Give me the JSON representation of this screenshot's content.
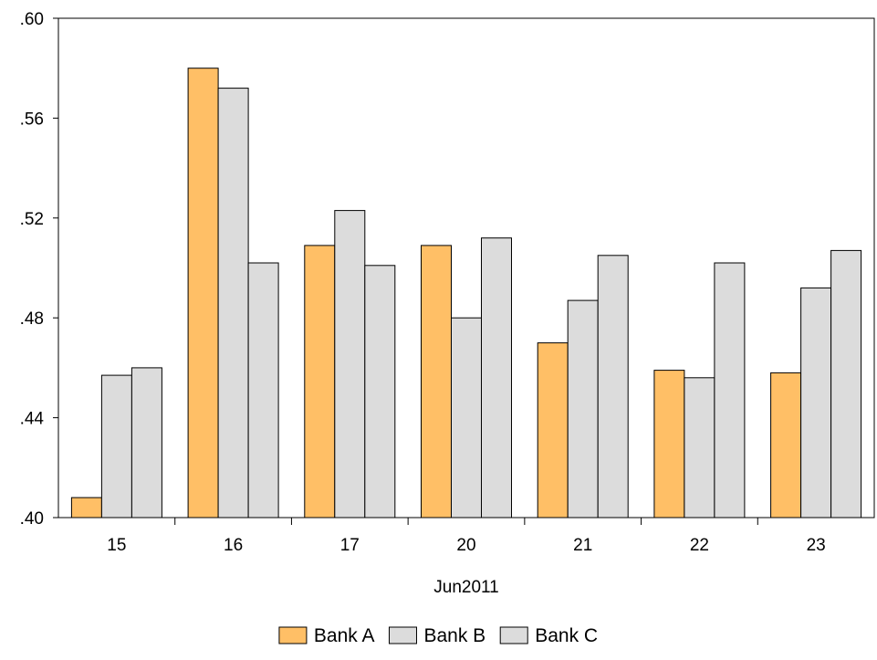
{
  "chart_data": {
    "type": "bar",
    "title": "",
    "xlabel": "Jun2011",
    "ylabel": "",
    "categories": [
      "15",
      "16",
      "17",
      "20",
      "21",
      "22",
      "23"
    ],
    "series": [
      {
        "name": "Bank A",
        "color": "#FFBF66",
        "values": [
          0.408,
          0.58,
          0.509,
          0.509,
          0.47,
          0.459,
          0.458
        ]
      },
      {
        "name": "Bank B",
        "color": "#DCDCDC",
        "values": [
          0.457,
          0.572,
          0.523,
          0.48,
          0.487,
          0.456,
          0.492
        ]
      },
      {
        "name": "Bank C",
        "color": "#DCDCDC",
        "values": [
          0.46,
          0.502,
          0.501,
          0.512,
          0.505,
          0.502,
          0.507
        ]
      }
    ],
    "ylim": [
      0.4,
      0.6
    ],
    "yticks": [
      0.4,
      0.44,
      0.48,
      0.52,
      0.56,
      0.6
    ],
    "ytick_labels": [
      ".40",
      ".44",
      ".48",
      ".52",
      ".56",
      ".60"
    ],
    "grid": false,
    "legend": "bottom-center"
  }
}
